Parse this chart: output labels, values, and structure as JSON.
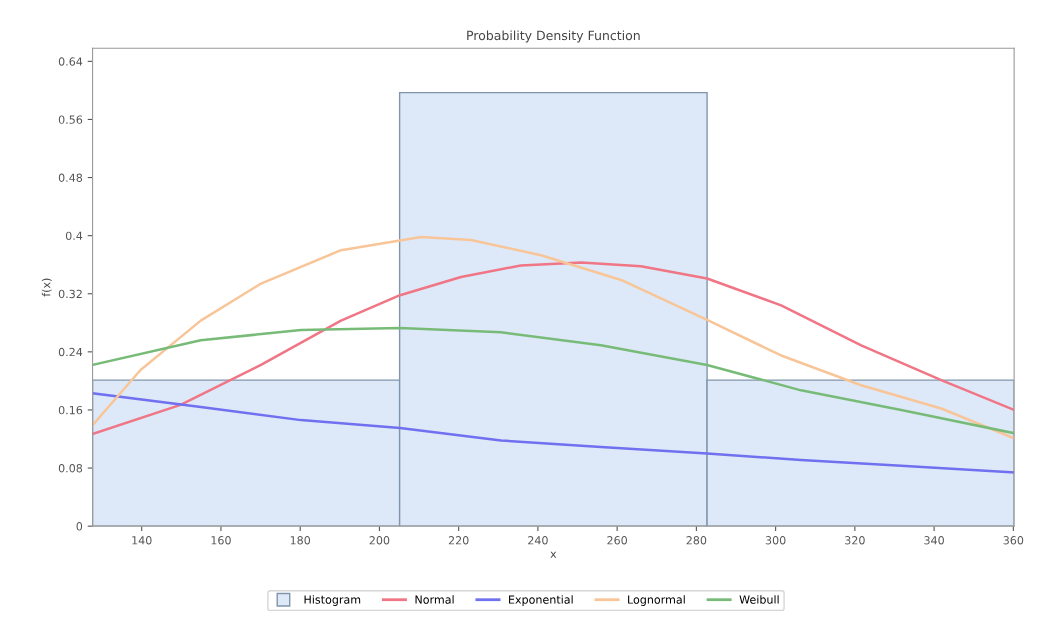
{
  "chart_data": {
    "type": "histogram",
    "title": "Probability Density Function",
    "xlabel": "x",
    "ylabel": "f(x)",
    "bins": [
      127.6,
      205.1,
      282.7,
      360.2
    ],
    "series": [
      {
        "name": "Histogram",
        "color": "#dde9f8",
        "values": [
          0.201,
          0.597,
          0.201
        ]
      },
      {
        "type": "line",
        "name": "Normal",
        "color": "#f07585",
        "x": [
          127.6,
          149.8,
          170.1,
          190.3,
          205.2,
          220.6,
          235.7,
          250.9,
          266.0,
          282.7,
          301.4,
          321.6,
          341.8,
          360.2
        ],
        "values": [
          0.127,
          0.167,
          0.222,
          0.283,
          0.318,
          0.343,
          0.359,
          0.363,
          0.358,
          0.341,
          0.304,
          0.249,
          0.201,
          0.16
        ]
      },
      {
        "type": "line",
        "name": "Exponential",
        "color": "#7070f0",
        "x": [
          127.6,
          154.9,
          180.2,
          205.2,
          230.7,
          255.9,
          282.7,
          306.4,
          331.7,
          360.2
        ],
        "values": [
          0.183,
          0.164,
          0.146,
          0.135,
          0.118,
          0.109,
          0.1,
          0.091,
          0.083,
          0.074
        ]
      },
      {
        "type": "line",
        "name": "Lognormal",
        "color": "#f8c598",
        "x": [
          127.6,
          139.7,
          154.9,
          170.1,
          190.3,
          210.5,
          223.1,
          240.8,
          261.0,
          282.7,
          301.4,
          321.6,
          341.8,
          360.2
        ],
        "values": [
          0.139,
          0.215,
          0.283,
          0.334,
          0.38,
          0.398,
          0.394,
          0.373,
          0.339,
          0.284,
          0.235,
          0.194,
          0.162,
          0.121
        ]
      },
      {
        "type": "line",
        "name": "Weibull",
        "color": "#78bb78",
        "x": [
          127.6,
          154.9,
          180.2,
          205.2,
          230.7,
          255.9,
          282.7,
          306.4,
          331.7,
          360.2
        ],
        "values": [
          0.222,
          0.256,
          0.27,
          0.273,
          0.267,
          0.249,
          0.222,
          0.187,
          0.16,
          0.128
        ]
      }
    ],
    "xlim": [
      127.6,
      360.2
    ],
    "xticks": [
      140,
      160,
      180,
      200,
      220,
      240,
      260,
      280,
      300,
      320,
      340,
      360
    ],
    "ylim": [
      0,
      0.658
    ],
    "yticks": [
      0,
      0.08,
      0.16,
      0.24,
      0.4,
      0.32,
      0.48,
      0.56,
      0.64
    ],
    "legend": "bottom"
  }
}
